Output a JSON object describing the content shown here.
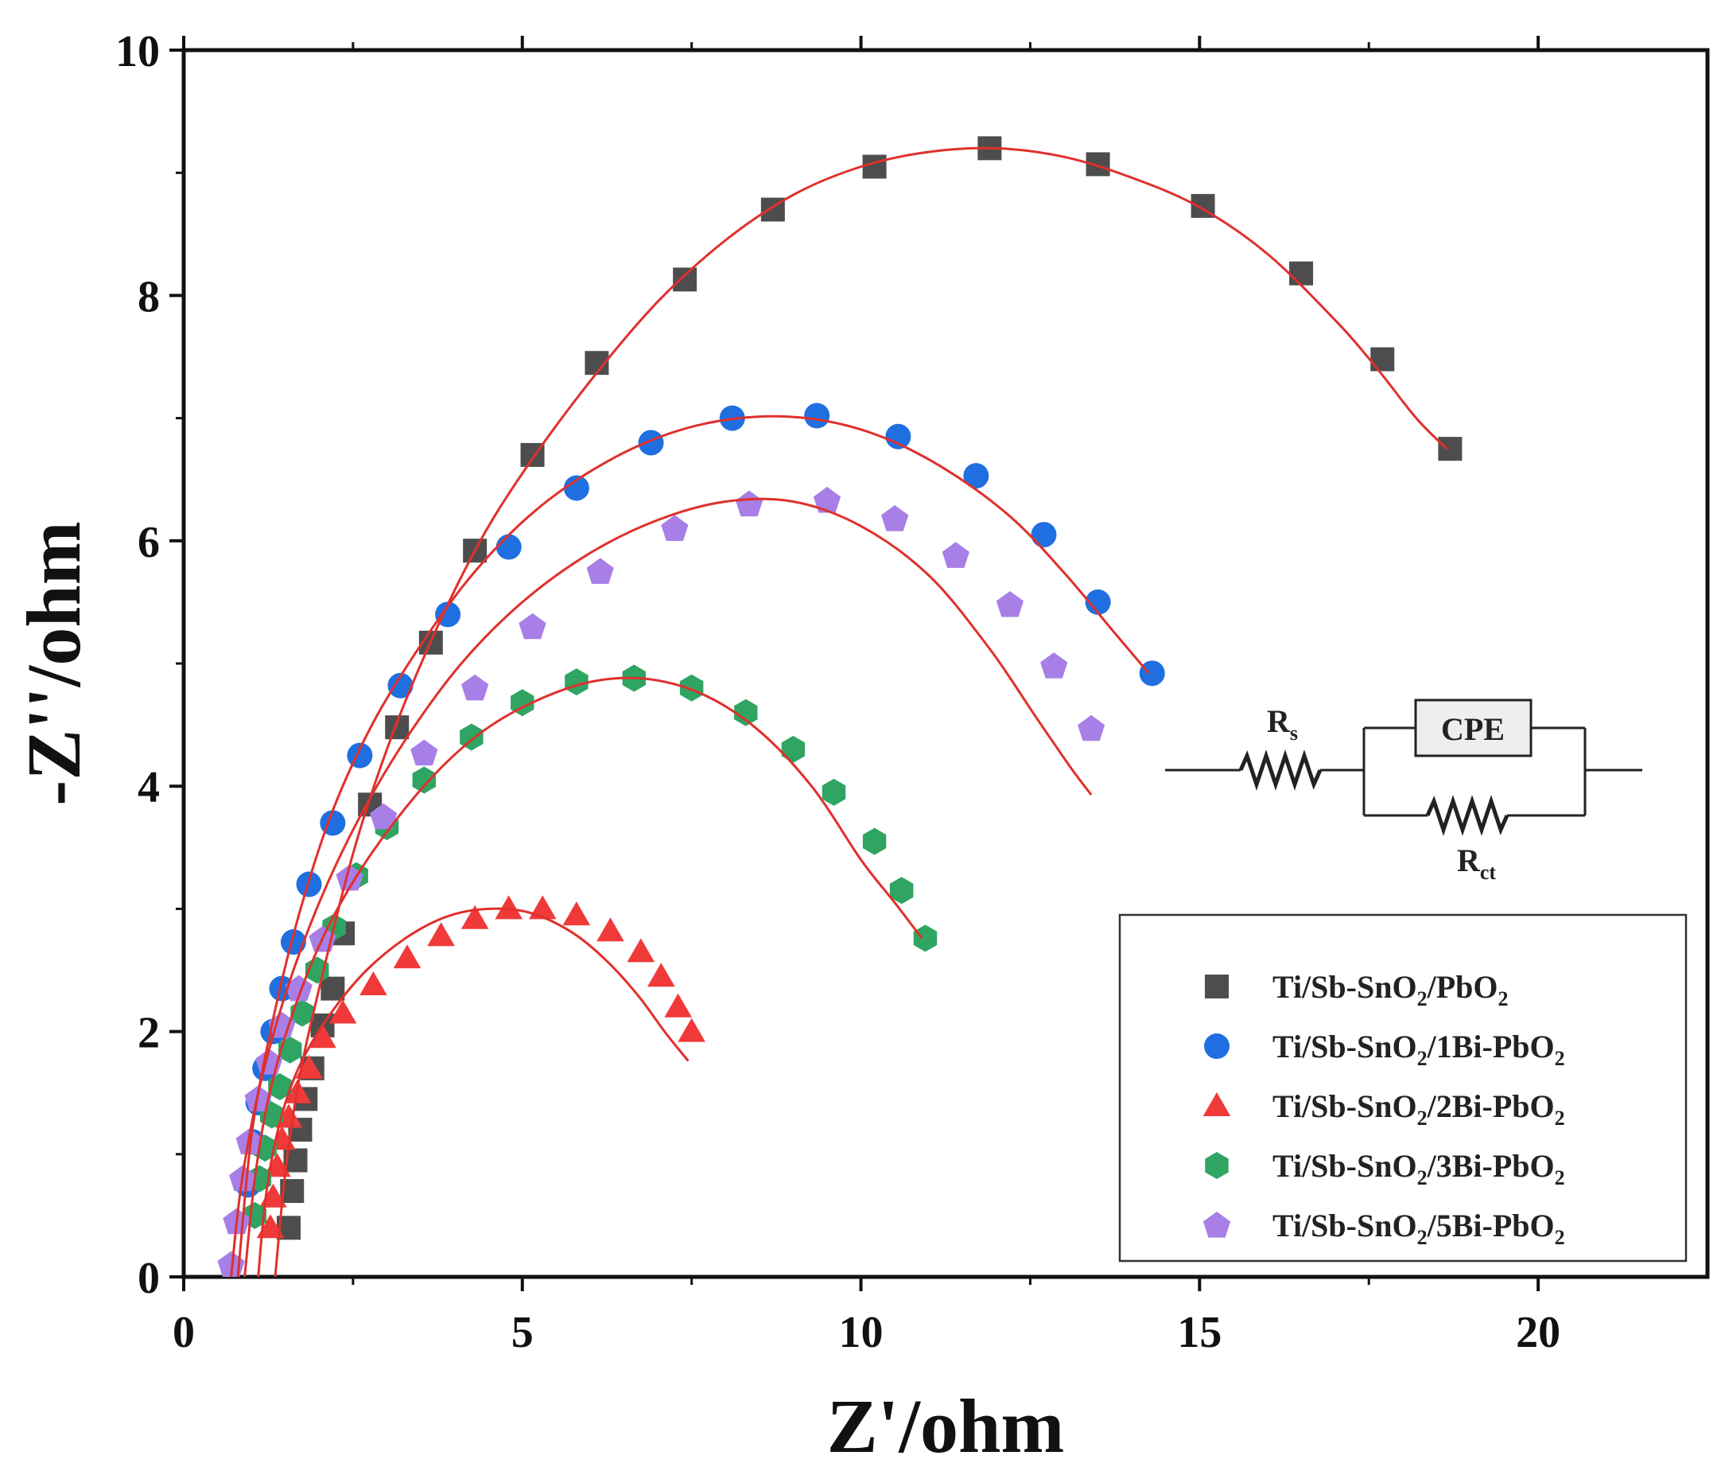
{
  "chart_data": {
    "type": "scatter",
    "title": "",
    "xlabel": "Z'/ohm",
    "ylabel": "-Z''/ohm",
    "xlim": [
      0,
      22.5
    ],
    "ylim": [
      0,
      10
    ],
    "xticks": [
      0,
      5,
      10,
      15,
      20
    ],
    "yticks": [
      0,
      2,
      4,
      6,
      8,
      10
    ],
    "legend_position": "bottom-right",
    "fit_color": "#e0302c",
    "series": [
      {
        "name": "Ti/Sb-SnO2/PbO2",
        "label_parts": [
          [
            "Ti/Sb-SnO",
            "n"
          ],
          [
            "2",
            "sub"
          ],
          [
            "/PbO",
            "n"
          ],
          [
            "2",
            "sub"
          ]
        ],
        "marker": "square",
        "color": "#4d4d4d",
        "x": [
          1.55,
          1.6,
          1.65,
          1.72,
          1.8,
          1.9,
          2.05,
          2.2,
          2.35,
          2.75,
          3.15,
          3.65,
          4.3,
          5.15,
          6.1,
          7.4,
          8.7,
          10.2,
          11.9,
          13.5,
          15.05,
          16.5,
          17.7,
          18.7
        ],
        "y": [
          0.4,
          0.7,
          0.95,
          1.2,
          1.45,
          1.7,
          2.05,
          2.35,
          2.8,
          3.85,
          4.48,
          5.17,
          5.92,
          6.7,
          7.45,
          8.13,
          8.7,
          9.05,
          9.2,
          9.07,
          8.73,
          8.18,
          7.48,
          6.75
        ],
        "fit_x": [
          1.35,
          1.5,
          1.7,
          2.0,
          2.5,
          3.0,
          3.6,
          4.3,
          5.0,
          6.0,
          7.0,
          8.0,
          9.0,
          10.0,
          11.0,
          12.0,
          13.0,
          14.0,
          15.0,
          16.0,
          17.0,
          17.6,
          18.2,
          18.65
        ],
        "fit_y": [
          0.0,
          0.85,
          1.6,
          2.35,
          3.45,
          4.3,
          5.12,
          5.92,
          6.55,
          7.3,
          7.95,
          8.45,
          8.82,
          9.05,
          9.17,
          9.2,
          9.13,
          8.96,
          8.72,
          8.34,
          7.8,
          7.42,
          7.0,
          6.75
        ]
      },
      {
        "name": "Ti/Sb-SnO2/1Bi-PbO2",
        "label_parts": [
          [
            "Ti/Sb-SnO",
            "n"
          ],
          [
            "2",
            "sub"
          ],
          [
            "/1Bi-PbO",
            "n"
          ],
          [
            "2",
            "sub"
          ]
        ],
        "marker": "circle",
        "color": "#1f6fe0",
        "x": [
          0.95,
          1.02,
          1.1,
          1.2,
          1.32,
          1.45,
          1.62,
          1.85,
          2.2,
          2.6,
          3.2,
          3.9,
          4.8,
          5.8,
          6.9,
          8.1,
          9.35,
          10.55,
          11.7,
          12.7,
          13.5,
          14.3
        ],
        "y": [
          0.75,
          1.1,
          1.42,
          1.7,
          2.0,
          2.35,
          2.73,
          3.2,
          3.7,
          4.25,
          4.82,
          5.4,
          5.95,
          6.43,
          6.8,
          7.0,
          7.02,
          6.85,
          6.53,
          6.05,
          5.5,
          4.92
        ],
        "fit_x": [
          0.8,
          1.0,
          1.3,
          1.7,
          2.2,
          2.8,
          3.5,
          4.3,
          5.2,
          6.2,
          7.2,
          8.2,
          9.2,
          10.2,
          11.2,
          12.2,
          13.0,
          13.7,
          14.25
        ],
        "fit_y": [
          0.0,
          1.15,
          2.05,
          2.95,
          3.8,
          4.52,
          5.15,
          5.75,
          6.25,
          6.63,
          6.88,
          7.0,
          7.0,
          6.87,
          6.6,
          6.2,
          5.74,
          5.28,
          4.92
        ]
      },
      {
        "name": "Ti/Sb-SnO2/2Bi-PbO2",
        "label_parts": [
          [
            "Ti/Sb-SnO",
            "n"
          ],
          [
            "2",
            "sub"
          ],
          [
            "/2Bi-PbO",
            "n"
          ],
          [
            "2",
            "sub"
          ]
        ],
        "marker": "triangle",
        "color": "#f03a3a",
        "x": [
          1.28,
          1.32,
          1.38,
          1.45,
          1.55,
          1.68,
          1.85,
          2.05,
          2.35,
          2.8,
          3.3,
          3.8,
          4.3,
          4.8,
          5.3,
          5.8,
          6.3,
          6.75,
          7.05,
          7.3,
          7.5
        ],
        "y": [
          0.4,
          0.65,
          0.9,
          1.12,
          1.3,
          1.5,
          1.7,
          1.95,
          2.15,
          2.38,
          2.6,
          2.78,
          2.92,
          3.0,
          3.0,
          2.95,
          2.82,
          2.65,
          2.45,
          2.2,
          2.0
        ],
        "fit_x": [
          1.1,
          1.2,
          1.35,
          1.55,
          1.8,
          2.2,
          2.7,
          3.3,
          3.9,
          4.5,
          5.1,
          5.7,
          6.2,
          6.7,
          7.1,
          7.45
        ],
        "fit_y": [
          0.0,
          0.6,
          1.1,
          1.5,
          1.82,
          2.17,
          2.5,
          2.77,
          2.94,
          3.0,
          2.97,
          2.82,
          2.6,
          2.3,
          2.0,
          1.76
        ]
      },
      {
        "name": "Ti/Sb-SnO2/3Bi-PbO2",
        "label_parts": [
          [
            "Ti/Sb-SnO",
            "n"
          ],
          [
            "2",
            "sub"
          ],
          [
            "/3Bi-PbO",
            "n"
          ],
          [
            "2",
            "sub"
          ]
        ],
        "marker": "hexagon",
        "color": "#2fa463",
        "x": [
          1.05,
          1.12,
          1.2,
          1.3,
          1.42,
          1.57,
          1.75,
          1.97,
          2.22,
          2.55,
          3.0,
          3.55,
          4.25,
          5.0,
          5.8,
          6.65,
          7.5,
          8.3,
          9.0,
          9.6,
          10.2,
          10.6,
          10.95
        ],
        "y": [
          0.5,
          0.8,
          1.05,
          1.32,
          1.55,
          1.85,
          2.15,
          2.5,
          2.85,
          3.27,
          3.67,
          4.05,
          4.4,
          4.68,
          4.85,
          4.88,
          4.8,
          4.6,
          4.3,
          3.95,
          3.55,
          3.15,
          2.76
        ],
        "fit_x": [
          0.9,
          1.05,
          1.25,
          1.55,
          2.0,
          2.5,
          3.1,
          3.8,
          4.5,
          5.3,
          6.1,
          6.9,
          7.7,
          8.5,
          9.3,
          10.0,
          10.5,
          10.9
        ],
        "fit_y": [
          0.0,
          0.8,
          1.45,
          2.05,
          2.7,
          3.22,
          3.7,
          4.15,
          4.48,
          4.72,
          4.86,
          4.87,
          4.74,
          4.45,
          3.98,
          3.4,
          3.05,
          2.76
        ]
      },
      {
        "name": "Ti/Sb-SnO2/5Bi-PbO2",
        "label_parts": [
          [
            "Ti/Sb-SnO",
            "n"
          ],
          [
            "2",
            "sub"
          ],
          [
            "/5Bi-PbO",
            "n"
          ],
          [
            "2",
            "sub"
          ]
        ],
        "marker": "pentagon",
        "color": "#a77fe6",
        "x": [
          0.7,
          0.78,
          0.87,
          0.97,
          1.1,
          1.26,
          1.45,
          1.7,
          2.05,
          2.45,
          2.95,
          3.55,
          4.3,
          5.15,
          6.15,
          7.25,
          8.35,
          9.5,
          10.5,
          11.4,
          12.2,
          12.85,
          13.4
        ],
        "y": [
          0.1,
          0.45,
          0.8,
          1.1,
          1.45,
          1.75,
          2.05,
          2.35,
          2.75,
          3.25,
          3.75,
          4.27,
          4.8,
          5.3,
          5.75,
          6.1,
          6.3,
          6.33,
          6.18,
          5.88,
          5.48,
          4.98,
          4.47
        ],
        "fit_x": [
          0.7,
          0.85,
          1.1,
          1.5,
          2.0,
          2.6,
          3.3,
          4.1,
          5.0,
          6.0,
          7.0,
          8.0,
          9.0,
          10.0,
          11.0,
          11.9,
          12.6,
          13.1,
          13.4
        ],
        "fit_y": [
          0.0,
          0.75,
          1.5,
          2.3,
          3.05,
          3.75,
          4.4,
          5.0,
          5.5,
          5.9,
          6.17,
          6.32,
          6.32,
          6.12,
          5.72,
          5.12,
          4.55,
          4.15,
          3.93
        ]
      }
    ]
  },
  "circuit": {
    "rs_label": "R",
    "rs_sub": "s",
    "cpe_label": "CPE",
    "rct_label": "R",
    "rct_sub": "ct"
  }
}
